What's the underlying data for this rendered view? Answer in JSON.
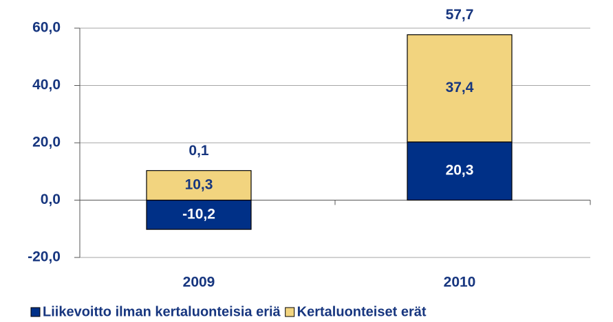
{
  "chart_data": {
    "type": "bar",
    "stacked": true,
    "categories": [
      "2009",
      "2010"
    ],
    "series": [
      {
        "name": "Liikevoitto ilman kertaluonteisia eriä",
        "color": "#003087",
        "label_color": "#ffffff",
        "values": [
          -10.2,
          20.3
        ],
        "value_labels": [
          "-10,2",
          "20,3"
        ]
      },
      {
        "name": "Kertaluonteiset erät",
        "color": "#f2d47f",
        "label_color": "#17367f",
        "values": [
          10.3,
          37.4
        ],
        "value_labels": [
          "10,3",
          "37,4"
        ]
      }
    ],
    "totals": [
      0.1,
      57.7
    ],
    "total_labels": [
      "0,1",
      "57,7"
    ],
    "ylim": [
      -20,
      60
    ],
    "yticks": [
      {
        "value": -20,
        "label": "-20,0"
      },
      {
        "value": 0,
        "label": "0,0"
      },
      {
        "value": 20,
        "label": "20,0"
      },
      {
        "value": 40,
        "label": "40,0"
      },
      {
        "value": 60,
        "label": "60,0"
      }
    ],
    "grid": true,
    "legend": "bottom"
  }
}
